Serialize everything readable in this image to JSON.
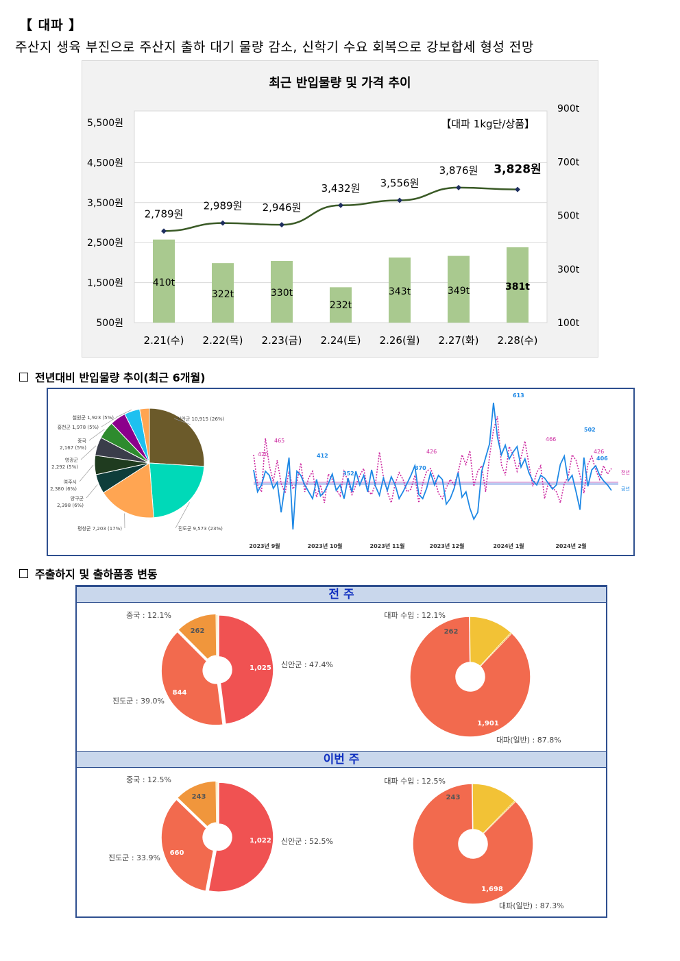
{
  "header": {
    "title": "【 대파 】",
    "summary": "주산지 생육 부진으로 주산지 출하 대기 물량 감소, 신학기 수요 회복으로 강보합세 형성 전망"
  },
  "chart1": {
    "title": "최근 반입물량 및 가격 추이",
    "unit_label": "【대파 1kg단/상품】",
    "left_axis_ticks": [
      "5,500원",
      "4,500원",
      "3,500원",
      "2,500원",
      "1,500원",
      "500원"
    ],
    "right_axis_ticks": [
      "900t",
      "700t",
      "500t",
      "300t",
      "100t"
    ],
    "chart_data": {
      "type": "bar",
      "categories": [
        "2.21(수)",
        "2.22(목)",
        "2.23(금)",
        "2.24(토)",
        "2.26(월)",
        "2.27(화)",
        "2.28(수)"
      ],
      "price_values": [
        2789,
        2989,
        2946,
        3432,
        3556,
        3876,
        3828
      ],
      "price_labels": [
        "2,789원",
        "2,989원",
        "2,946원",
        "3,432원",
        "3,556원",
        "3,876원",
        "3,828원"
      ],
      "volume_values": [
        410,
        322,
        330,
        232,
        343,
        349,
        381
      ],
      "volume_labels": [
        "410t",
        "322t",
        "330t",
        "232t",
        "343t",
        "349t",
        "381t"
      ],
      "price_ylim": [
        500,
        5500
      ],
      "volume_ylim": [
        100,
        900
      ],
      "bar_color": "#a9c98f",
      "line_color": "#3a5a26",
      "marker_color": "#1f2f5f"
    }
  },
  "section2": {
    "title": "전년대비 반입물량 추이(최근 6개월)",
    "pie": {
      "chart_data": {
        "type": "pie",
        "labels": [
          "신안군 10,915 (26%)",
          "진도군 9,573 (23%)",
          "평창군 7,203 (17%)",
          "양구군 2,398 (6%)",
          "여주시 2,380 (6%)",
          "영광군 2,292 (5%)",
          "중국 2,167 (5%)",
          "홍천군 1,978 (5%)",
          "철원군 1,923 (5%)"
        ],
        "values": [
          10915,
          9573,
          7203,
          2398,
          2380,
          2292,
          2167,
          1978,
          1923
        ],
        "colors": [
          "#6b5a2a",
          "#00d9b8",
          "#ffa552",
          "#0e3d3a",
          "#1f3b1f",
          "#3a3d4a",
          "#2e8b2e",
          "#8b008b",
          "#1ec0f0",
          "#ffa552"
        ]
      },
      "remainder_color": "#ffa552"
    },
    "line": {
      "series_labels": [
        "전년",
        "금년"
      ],
      "data_labels": [
        "613",
        "412",
        "352",
        "370",
        "502",
        "406",
        "465",
        "420",
        "426",
        "466",
        "426"
      ],
      "months": [
        "2023년 9월",
        "2023년 10월",
        "2023년 11월",
        "2023년 12월",
        "2024년 1월",
        "2024년 2월"
      ],
      "this_year_color": "#1e88e5",
      "last_year_color": "#cc2aa0"
    }
  },
  "section3": {
    "title": "주출하지 및 출하품종 변동",
    "prev_band": "전 주",
    "curr_band": "이번 주",
    "prev_origin": {
      "chart_data": {
        "type": "pie",
        "labels": [
          "신안군 : 47.4%",
          "진도군 : 39.0%",
          "중국 : 12.1%"
        ],
        "values": [
          1025,
          844,
          262
        ],
        "value_labels": [
          "1,025",
          "844",
          "262"
        ],
        "colors": [
          "#f05252",
          "#f26a4e",
          "#f0963c",
          "#f2c236"
        ]
      }
    },
    "prev_variety": {
      "chart_data": {
        "type": "pie",
        "labels": [
          "대파(일반) : 87.8%",
          "대파 수입 : 12.1%"
        ],
        "values": [
          1901,
          262
        ],
        "value_labels": [
          "1,901",
          "262"
        ],
        "colors": [
          "#f26a4e",
          "#f2c236"
        ]
      }
    },
    "curr_origin": {
      "chart_data": {
        "type": "pie",
        "labels": [
          "신안군 : 52.5%",
          "진도군 : 33.9%",
          "중국 : 12.5%"
        ],
        "values": [
          1022,
          660,
          243
        ],
        "value_labels": [
          "1,022",
          "660",
          "243"
        ],
        "colors": [
          "#f05252",
          "#f26a4e",
          "#f0963c",
          "#f2c236"
        ]
      }
    },
    "curr_variety": {
      "chart_data": {
        "type": "pie",
        "labels": [
          "대파(일반) : 87.3%",
          "대파 수입 : 12.5%"
        ],
        "values": [
          1698,
          243
        ],
        "value_labels": [
          "1,698",
          "243"
        ],
        "colors": [
          "#f26a4e",
          "#f2c236"
        ]
      }
    }
  }
}
